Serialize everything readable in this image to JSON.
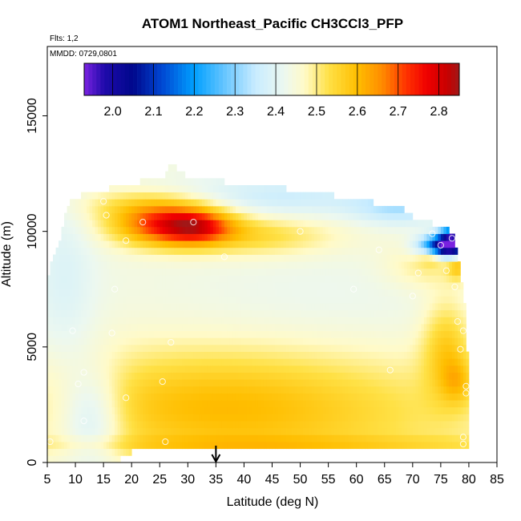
{
  "chart_data": {
    "type": "heatmap",
    "title": "ATOM1 Northeast_Pacific CH3CCl3_PFP",
    "annotations": [
      "Flts: 1,2",
      "MMDD: 0729,0801"
    ],
    "xlabel": "Latitude (deg N)",
    "ylabel": "Altitude (m)",
    "xlim": [
      5,
      85
    ],
    "ylim": [
      0,
      18000
    ],
    "xticks": [
      "5",
      "10",
      "15",
      "20",
      "25",
      "30",
      "35",
      "40",
      "45",
      "50",
      "55",
      "60",
      "65",
      "70",
      "75",
      "80",
      "85"
    ],
    "yticks": [
      "0",
      "5000",
      "10000",
      "15000"
    ],
    "colorbar": {
      "range": [
        1.93,
        2.85
      ],
      "ticks": [
        "2.0",
        "2.1",
        "2.2",
        "2.3",
        "2.4",
        "2.5",
        "2.6",
        "2.7",
        "2.8"
      ],
      "colors": [
        "#7a22e0",
        "#1a0fb0",
        "#000c8a",
        "#0050d8",
        "#00a0ff",
        "#66ccff",
        "#c8ecff",
        "#f4f8f4",
        "#fff8c0",
        "#ffe040",
        "#ffc000",
        "#ff8c00",
        "#ff4000",
        "#ff0000",
        "#d00000",
        "#a01818"
      ],
      "placement": "top-inside"
    },
    "marker": {
      "latitude": 35,
      "symbol": "down-arrow"
    },
    "samples": [
      [
        5.5,
        900
      ],
      [
        9.5,
        5700
      ],
      [
        10.5,
        3400
      ],
      [
        11.5,
        1800
      ],
      [
        11.5,
        3900
      ],
      [
        14.5,
        12200
      ],
      [
        15,
        11300
      ],
      [
        15.5,
        10700
      ],
      [
        17,
        7500
      ],
      [
        16.5,
        5600
      ],
      [
        19,
        2800
      ],
      [
        19,
        9600
      ],
      [
        22,
        10400
      ],
      [
        25.5,
        3500
      ],
      [
        26,
        900
      ],
      [
        27,
        5200
      ],
      [
        31,
        10400
      ],
      [
        36.5,
        8900
      ],
      [
        50,
        10000
      ],
      [
        59.5,
        7500
      ],
      [
        64,
        9200
      ],
      [
        66,
        4000
      ],
      [
        67.5,
        11300
      ],
      [
        70,
        7200
      ],
      [
        71,
        8200
      ],
      [
        73.5,
        9900
      ],
      [
        75,
        9400
      ],
      [
        76,
        8300
      ],
      [
        77,
        9700
      ],
      [
        77.5,
        7600
      ],
      [
        78,
        6100
      ],
      [
        78.5,
        4900
      ],
      [
        79,
        5700
      ],
      [
        79.5,
        3300
      ],
      [
        79.5,
        3000
      ],
      [
        79,
        1100
      ],
      [
        79,
        800
      ]
    ]
  }
}
